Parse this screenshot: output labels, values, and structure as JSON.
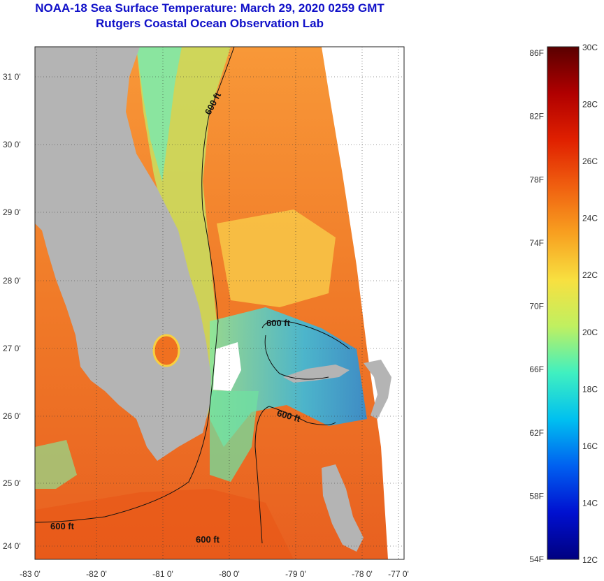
{
  "header": {
    "title": "NOAA-18 Sea Surface Temperature:  March 29, 2020 0259 GMT",
    "subtitle": "Rutgers Coastal Ocean Observation Lab"
  },
  "axes": {
    "longitude_labels": [
      "-83 0'",
      "-82 0'",
      "-81 0'",
      "-80 0'",
      "-79 0'",
      "-78 0'",
      "-77 0'"
    ],
    "latitude_labels": [
      "31 0'",
      "30 0'",
      "29 0'",
      "28 0'",
      "27 0'",
      "26 0'",
      "25 0'",
      "24 0'"
    ]
  },
  "contours": {
    "label": "600 ft",
    "label_count": 5
  },
  "colorbar": {
    "fahrenheit_labels": [
      "86F",
      "82F",
      "78F",
      "74F",
      "70F",
      "66F",
      "62F",
      "58F",
      "54F"
    ],
    "celsius_labels": [
      "30C",
      "28C",
      "26C",
      "24C",
      "22C",
      "20C",
      "18C",
      "16C",
      "14C",
      "12C"
    ],
    "colors": [
      "#5a0000",
      "#b00000",
      "#e02000",
      "#f06010",
      "#f8a020",
      "#f8e040",
      "#c0f060",
      "#40f0c0",
      "#00c0f0",
      "#0060f0",
      "#0010d0",
      "#000080"
    ]
  },
  "colors": {
    "land": "#b4b4b4",
    "water_warm": "#f07828",
    "water_mid": "#f8a838",
    "water_cool": "#78e8a0",
    "water_cold": "#28b8e8",
    "title_blue": "#1010c8"
  }
}
